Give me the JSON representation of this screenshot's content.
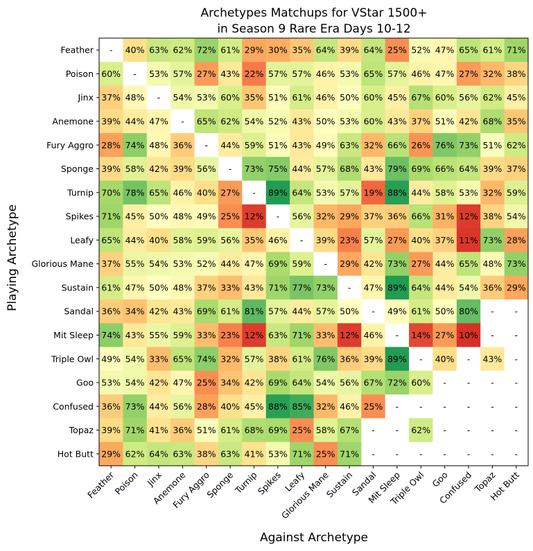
{
  "chart_data": {
    "type": "heatmap",
    "title_lines": [
      "Archetypes Matchups for VStar 1500+",
      "in Season 9 Rare Era Days 10-12"
    ],
    "xlabel": "Against Archetype",
    "ylabel": "Playing Archetype",
    "missing_label": "-",
    "rows": [
      "Feather",
      "Poison",
      "Jinx",
      "Anemone",
      "Fury Aggro",
      "Sponge",
      "Turnip",
      "Spikes",
      "Leafy",
      "Glorious Mane",
      "Sustain",
      "Sandal",
      "Mit Sleep",
      "Triple Owl",
      "Goo",
      "Confused",
      "Topaz",
      "Hot Butt"
    ],
    "columns": [
      "Feather",
      "Poison",
      "Jinx",
      "Anemone",
      "Fury Aggro",
      "Sponge",
      "Turnip",
      "Spikes",
      "Leafy",
      "Glorious Mane",
      "Sustain",
      "Sandal",
      "Mit Sleep",
      "Triple Owl",
      "Goo",
      "Confused",
      "Topaz",
      "Hot Butt"
    ],
    "values": [
      [
        null,
        40,
        63,
        62,
        72,
        61,
        29,
        30,
        35,
        64,
        39,
        64,
        25,
        52,
        47,
        65,
        61,
        71
      ],
      [
        60,
        null,
        53,
        57,
        27,
        43,
        22,
        57,
        57,
        46,
        53,
        65,
        57,
        46,
        47,
        27,
        32,
        38
      ],
      [
        37,
        48,
        null,
        54,
        53,
        60,
        35,
        51,
        61,
        46,
        50,
        60,
        45,
        67,
        60,
        56,
        62,
        45
      ],
      [
        39,
        44,
        47,
        null,
        65,
        62,
        54,
        52,
        43,
        50,
        53,
        60,
        43,
        37,
        51,
        42,
        68,
        35
      ],
      [
        28,
        74,
        48,
        36,
        null,
        44,
        59,
        51,
        43,
        49,
        63,
        32,
        66,
        26,
        76,
        73,
        51,
        62
      ],
      [
        39,
        58,
        42,
        39,
        56,
        null,
        73,
        75,
        44,
        57,
        68,
        43,
        79,
        69,
        66,
        64,
        39,
        37
      ],
      [
        70,
        78,
        65,
        46,
        40,
        27,
        null,
        89,
        64,
        53,
        57,
        19,
        88,
        44,
        58,
        53,
        32,
        59
      ],
      [
        71,
        45,
        50,
        48,
        49,
        25,
        12,
        null,
        56,
        32,
        29,
        37,
        36,
        66,
        31,
        12,
        38,
        54
      ],
      [
        65,
        44,
        40,
        58,
        59,
        56,
        35,
        46,
        null,
        39,
        23,
        57,
        27,
        40,
        37,
        11,
        73,
        28
      ],
      [
        37,
        55,
        54,
        53,
        52,
        44,
        47,
        69,
        59,
        null,
        29,
        42,
        73,
        27,
        44,
        65,
        48,
        73
      ],
      [
        61,
        47,
        50,
        48,
        37,
        33,
        43,
        71,
        77,
        73,
        null,
        47,
        89,
        64,
        44,
        54,
        36,
        29
      ],
      [
        36,
        34,
        42,
        43,
        69,
        61,
        81,
        57,
        44,
        57,
        50,
        null,
        49,
        61,
        50,
        80,
        null,
        null
      ],
      [
        74,
        43,
        55,
        59,
        33,
        23,
        12,
        63,
        71,
        33,
        12,
        46,
        null,
        14,
        27,
        10,
        null,
        null
      ],
      [
        49,
        54,
        33,
        65,
        74,
        32,
        57,
        38,
        61,
        76,
        36,
        39,
        89,
        null,
        40,
        null,
        43,
        null
      ],
      [
        53,
        54,
        42,
        47,
        25,
        34,
        42,
        69,
        64,
        54,
        56,
        67,
        72,
        60,
        null,
        null,
        null,
        null
      ],
      [
        36,
        73,
        44,
        56,
        28,
        40,
        45,
        88,
        85,
        32,
        46,
        25,
        null,
        null,
        null,
        null,
        null,
        null
      ],
      [
        39,
        71,
        41,
        36,
        51,
        61,
        68,
        69,
        25,
        58,
        67,
        null,
        null,
        62,
        null,
        null,
        null,
        null
      ],
      [
        29,
        62,
        64,
        63,
        38,
        63,
        41,
        53,
        71,
        25,
        71,
        null,
        null,
        null,
        null,
        null,
        null,
        null
      ]
    ],
    "value_format": "percent",
    "value_range": [
      0,
      100
    ],
    "colormap": "red-yellow-green",
    "missing_color": "#ffffff"
  }
}
